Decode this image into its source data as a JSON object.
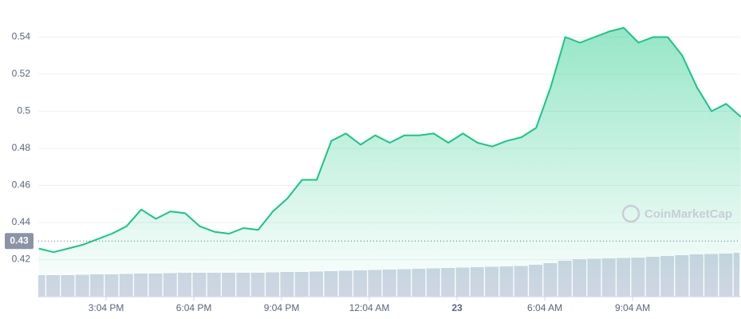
{
  "chart_data": [
    {
      "type": "area",
      "x": [
        -2.3,
        -1.8,
        -1.3,
        -0.8,
        -0.3,
        0.2,
        0.7,
        1.2,
        1.7,
        2.2,
        2.7,
        3.2,
        3.7,
        4.2,
        4.7,
        5.2,
        5.7,
        6.2,
        6.7,
        7.2,
        7.7,
        8.2,
        8.7,
        9.2,
        9.7,
        10.2,
        10.7,
        11.2,
        11.7,
        12.2,
        12.7,
        13.2,
        13.7,
        14.2,
        14.7,
        15.2,
        15.7,
        16.2,
        16.7,
        17.2,
        17.7,
        18.2,
        18.7,
        19.2,
        19.7,
        20.2,
        20.7,
        21.2,
        21.7
      ],
      "series": [
        {
          "color": "#16c784",
          "values": [
            0.426,
            0.424,
            0.426,
            0.428,
            0.431,
            0.434,
            0.438,
            0.447,
            0.442,
            0.446,
            0.445,
            0.438,
            0.435,
            0.434,
            0.437,
            0.436,
            0.446,
            0.453,
            0.463,
            0.463,
            0.484,
            0.488,
            0.482,
            0.487,
            0.483,
            0.487,
            0.487,
            0.488,
            0.483,
            0.488,
            0.483,
            0.481,
            0.484,
            0.486,
            0.491,
            0.513,
            0.54,
            0.537,
            0.54,
            0.543,
            0.545,
            0.537,
            0.54,
            0.54,
            0.53,
            0.513,
            0.5,
            0.504,
            0.497
          ]
        }
      ],
      "xlim": [
        -2.32,
        21.68
      ],
      "xticks": [
        {
          "value": 0,
          "label": "3:04 PM"
        },
        {
          "value": 3,
          "label": "6:04 PM"
        },
        {
          "value": 6,
          "label": "9:04 PM"
        },
        {
          "value": 9,
          "label": "12:04 AM"
        },
        {
          "value": 12,
          "label": "23"
        },
        {
          "value": 15,
          "label": "6:04 AM"
        },
        {
          "value": 18,
          "label": "9:04 AM"
        }
      ],
      "ylim": [
        0.4,
        0.56
      ],
      "yticks": [
        0.42,
        0.44,
        0.46,
        0.48,
        0.5,
        0.52,
        0.54
      ],
      "grid": true,
      "reference_line": 0.43,
      "watermark": "CoinMarketCap"
    },
    {
      "type": "bar",
      "x": [
        -2.3,
        -1.8,
        -1.3,
        -0.8,
        -0.3,
        0.2,
        0.7,
        1.2,
        1.7,
        2.2,
        2.7,
        3.2,
        3.7,
        4.2,
        4.7,
        5.2,
        5.7,
        6.2,
        6.7,
        7.2,
        7.7,
        8.2,
        8.7,
        9.2,
        9.7,
        10.2,
        10.7,
        11.2,
        11.7,
        12.2,
        12.7,
        13.2,
        13.7,
        14.2,
        14.7,
        15.2,
        15.7,
        16.2,
        16.7,
        17.2,
        17.7,
        18.2,
        18.7,
        19.2,
        19.7,
        20.2,
        20.7,
        21.2,
        21.7
      ],
      "values": [
        27,
        27,
        27,
        27.5,
        28,
        28,
        28.5,
        29,
        29,
        29.5,
        30,
        30,
        30,
        30,
        30,
        30,
        30.5,
        31,
        31,
        31.5,
        32,
        32.5,
        33,
        33.5,
        34,
        34.5,
        35,
        35.5,
        36,
        36.5,
        37,
        37.5,
        38,
        38.5,
        40,
        42,
        45,
        47,
        47.5,
        48,
        48.5,
        49,
        50,
        51,
        52,
        53,
        53.5,
        54,
        55
      ],
      "color": "#cfd6e4",
      "ylim": [
        0,
        100
      ]
    }
  ]
}
